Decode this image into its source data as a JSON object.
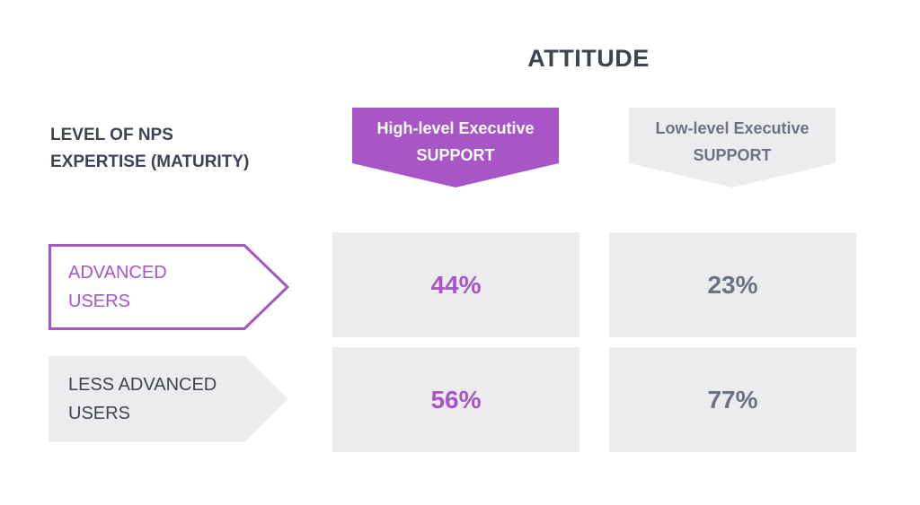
{
  "title": "ATTITUDE",
  "row_heading": [
    "LEVEL OF NPS",
    "EXPERTISE (MATURITY)"
  ],
  "columns": [
    {
      "label_line1": "High-level Executive",
      "label_line2": "SUPPORT",
      "color": "#a855c8"
    },
    {
      "label_line1": "Low-level Executive",
      "label_line2": "SUPPORT",
      "color": "#ececee"
    }
  ],
  "rows": [
    {
      "label_line1": "ADVANCED",
      "label_line2": "USERS",
      "color": "#a855c8",
      "values": [
        "44%",
        "23%"
      ]
    },
    {
      "label_line1": "LESS ADVANCED",
      "label_line2": "USERS",
      "color": "#ececee",
      "values": [
        "56%",
        "77%"
      ]
    }
  ]
}
